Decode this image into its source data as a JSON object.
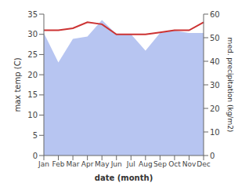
{
  "chart_data": {
    "type": "line",
    "xlabel": "date (month)",
    "ylabel": "max temp (C)",
    "y2label": "med. precipitation (kg/m2)",
    "categories": [
      "Jan",
      "Feb",
      "Mar",
      "Apr",
      "May",
      "Jun",
      "Jul",
      "Aug",
      "Sep",
      "Oct",
      "Nov",
      "Dec"
    ],
    "series": [
      {
        "type": "area",
        "axis": "y2",
        "color": "#aabbee",
        "values": [
          52.0,
          39.5,
          49.5,
          50.5,
          57.5,
          51.5,
          51.5,
          44.5,
          52.0,
          53.0,
          52.0,
          52.0
        ]
      },
      {
        "type": "line",
        "color": "#cc3333",
        "values": [
          31.0,
          31.0,
          31.5,
          33.0,
          32.5,
          30.0,
          30.0,
          30.0,
          30.5,
          31.0,
          31.0,
          33.0
        ]
      }
    ],
    "ylim": [
      0,
      35
    ],
    "yticks": [
      0,
      5,
      10,
      15,
      20,
      25,
      30,
      35
    ],
    "y2lim": [
      0,
      60
    ],
    "y2ticks": [
      0,
      10,
      20,
      30,
      40,
      50,
      60
    ],
    "grid": false
  }
}
